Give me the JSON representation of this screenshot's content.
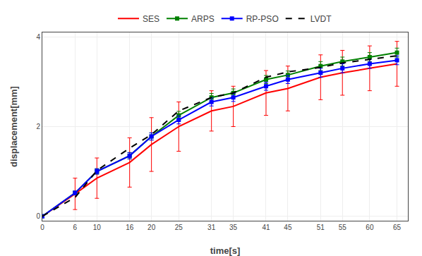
{
  "chart_data": {
    "type": "line",
    "x_label": "time[s]",
    "y_label": "displacement[mm]",
    "x": [
      0,
      6,
      10,
      16,
      20,
      25,
      31,
      35,
      41,
      45,
      51,
      55,
      60,
      65
    ],
    "series": [
      {
        "name": "SES",
        "color": "#FF0000",
        "line_style": "solid",
        "values": [
          0.0,
          0.5,
          0.85,
          1.2,
          1.6,
          2.0,
          2.35,
          2.45,
          2.75,
          2.85,
          3.1,
          3.2,
          3.3,
          3.4
        ],
        "errors": [
          0.0,
          0.35,
          0.45,
          0.55,
          0.6,
          0.55,
          0.45,
          0.45,
          0.5,
          0.5,
          0.5,
          0.5,
          0.5,
          0.5
        ]
      },
      {
        "name": "ARPS",
        "color": "#008000",
        "line_style": "solid",
        "marker": "square",
        "values": [
          0.0,
          0.52,
          1.0,
          1.35,
          1.78,
          2.25,
          2.65,
          2.75,
          3.05,
          3.15,
          3.35,
          3.45,
          3.55,
          3.65
        ],
        "errors": [
          0.0,
          0.04,
          0.06,
          0.07,
          0.08,
          0.09,
          0.09,
          0.09,
          0.09,
          0.09,
          0.1,
          0.1,
          0.1,
          0.1
        ]
      },
      {
        "name": "RP-PSO",
        "color": "#0000FF",
        "line_style": "solid",
        "marker": "square",
        "values": [
          0.0,
          0.52,
          1.0,
          1.35,
          1.78,
          2.15,
          2.55,
          2.65,
          2.9,
          3.05,
          3.2,
          3.3,
          3.4,
          3.48
        ],
        "errors": [
          0.0,
          0.04,
          0.06,
          0.07,
          0.08,
          0.09,
          0.09,
          0.09,
          0.09,
          0.09,
          0.1,
          0.1,
          0.1,
          0.1
        ]
      },
      {
        "name": "LVDT",
        "color": "#000000",
        "line_style": "dashed",
        "values": [
          0.0,
          0.42,
          1.02,
          1.52,
          1.82,
          2.35,
          2.65,
          2.75,
          3.1,
          3.22,
          3.32,
          3.42,
          3.5,
          3.58
        ]
      }
    ],
    "xlim": [
      0,
      67
    ],
    "xticks": [
      0,
      6,
      10,
      16,
      20,
      25,
      31,
      35,
      41,
      45,
      51,
      55,
      60,
      65
    ],
    "ylim": [
      -0.1,
      4.1
    ],
    "yticks": [
      0,
      2,
      4
    ],
    "grid": true,
    "legend": "top"
  }
}
